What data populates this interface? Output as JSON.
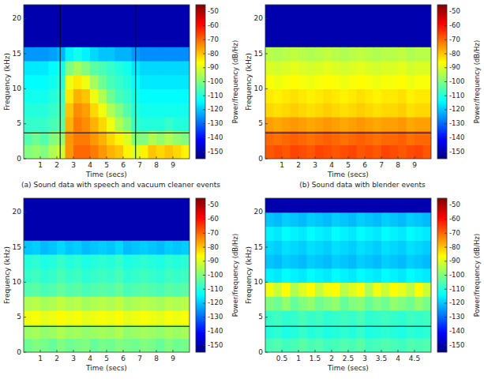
{
  "chart_data": [
    {
      "type": "heatmap",
      "caption": "(a) Sound data with speech and vacuum cleaner events",
      "x_label": "Time (secs)",
      "y_label": "Frequency (kHz)",
      "xlim": [
        0,
        10
      ],
      "ylim": [
        0,
        22
      ],
      "xticks": [
        1,
        2,
        3,
        4,
        5,
        6,
        7,
        8,
        9
      ],
      "yticks": [
        0,
        5,
        10,
        15,
        20
      ],
      "x": [
        0.25,
        0.75,
        1.25,
        1.75,
        2.25,
        2.75,
        3.25,
        3.75,
        4.25,
        4.75,
        5.25,
        5.75,
        6.25,
        6.75,
        7.25,
        7.75,
        8.25,
        8.75,
        9.25,
        9.75
      ],
      "y": [
        1,
        3,
        5,
        7,
        9,
        11,
        13,
        15,
        17,
        19,
        21
      ],
      "z": [
        [
          -100,
          -98,
          -100,
          -95,
          -92,
          -75,
          -70,
          -70,
          -72,
          -75,
          -78,
          -80,
          -85,
          -90,
          -85,
          -80,
          -82,
          -80,
          -82,
          -85
        ],
        [
          -105,
          -102,
          -105,
          -100,
          -98,
          -75,
          -72,
          -72,
          -75,
          -78,
          -82,
          -85,
          -90,
          -100,
          -100,
          -95,
          -98,
          -95,
          -98,
          -100
        ],
        [
          -108,
          -108,
          -108,
          -106,
          -104,
          -78,
          -72,
          -74,
          -78,
          -82,
          -88,
          -95,
          -100,
          -108,
          -110,
          -110,
          -110,
          -108,
          -110,
          -110
        ],
        [
          -110,
          -110,
          -110,
          -108,
          -106,
          -80,
          -74,
          -76,
          -82,
          -88,
          -95,
          -100,
          -105,
          -110,
          -112,
          -112,
          -112,
          -112,
          -112,
          -112
        ],
        [
          -112,
          -112,
          -112,
          -110,
          -108,
          -84,
          -78,
          -80,
          -88,
          -95,
          -102,
          -106,
          -108,
          -112,
          -114,
          -114,
          -114,
          -114,
          -114,
          -114
        ],
        [
          -114,
          -114,
          -114,
          -112,
          -110,
          -88,
          -84,
          -88,
          -96,
          -102,
          -106,
          -108,
          -110,
          -114,
          -116,
          -116,
          -116,
          -116,
          -116,
          -116
        ],
        [
          -116,
          -116,
          -116,
          -114,
          -112,
          -100,
          -96,
          -100,
          -104,
          -106,
          -108,
          -110,
          -112,
          -116,
          -118,
          -118,
          -118,
          -118,
          -118,
          -118
        ],
        [
          -125,
          -125,
          -125,
          -124,
          -122,
          -115,
          -112,
          -115,
          -118,
          -120,
          -120,
          -122,
          -122,
          -125,
          -126,
          -126,
          -126,
          -126,
          -126,
          -126
        ],
        [
          -150,
          -150,
          -150,
          -150,
          -150,
          -150,
          -150,
          -150,
          -150,
          -150,
          -150,
          -150,
          -150,
          -150,
          -150,
          -150,
          -150,
          -150,
          -150,
          -150
        ],
        [
          -150,
          -150,
          -150,
          -150,
          -150,
          -150,
          -150,
          -150,
          -150,
          -150,
          -150,
          -150,
          -150,
          -150,
          -150,
          -150,
          -150,
          -150,
          -150,
          -150
        ],
        [
          -150,
          -150,
          -150,
          -150,
          -150,
          -150,
          -150,
          -150,
          -150,
          -150,
          -150,
          -150,
          -150,
          -150,
          -150,
          -150,
          -150,
          -150,
          -150,
          -150
        ]
      ],
      "hlines": [
        3.7
      ],
      "vlines": [
        2.2,
        6.75
      ],
      "colorbar": {
        "label": "Power/frequency (dB/Hz)",
        "range": [
          -155,
          -45
        ],
        "ticks": [
          -50,
          -60,
          -70,
          -80,
          -90,
          -100,
          -110,
          -120,
          -130,
          -140,
          -150
        ]
      }
    },
    {
      "type": "heatmap",
      "caption": "(b) Sound data with blender events",
      "x_label": "Time (secs)",
      "y_label": "Frequency (kHz)",
      "xlim": [
        0,
        10
      ],
      "ylim": [
        0,
        22
      ],
      "xticks": [
        1,
        2,
        3,
        4,
        5,
        6,
        7,
        8,
        9
      ],
      "yticks": [
        0,
        5,
        10,
        15,
        20
      ],
      "x": [
        0.25,
        0.75,
        1.25,
        1.75,
        2.25,
        2.75,
        3.25,
        3.75,
        4.25,
        4.75,
        5.25,
        5.75,
        6.25,
        6.75,
        7.25,
        7.75,
        8.25,
        8.75,
        9.25,
        9.75
      ],
      "y": [
        1,
        3,
        5,
        7,
        9,
        11,
        13,
        15,
        17,
        19,
        21
      ],
      "z": [
        [
          -68,
          -67,
          -68,
          -66,
          -67,
          -68,
          -66,
          -67,
          -68,
          -67,
          -66,
          -68,
          -67,
          -68,
          -66,
          -67,
          -68,
          -67,
          -66,
          -68
        ],
        [
          -70,
          -71,
          -70,
          -69,
          -70,
          -71,
          -70,
          -69,
          -70,
          -71,
          -70,
          -69,
          -70,
          -71,
          -70,
          -70,
          -69,
          -71,
          -70,
          -70
        ],
        [
          -76,
          -77,
          -76,
          -75,
          -76,
          -77,
          -76,
          -75,
          -76,
          -77,
          -76,
          -75,
          -76,
          -77,
          -76,
          -76,
          -75,
          -77,
          -76,
          -76
        ],
        [
          -82,
          -83,
          -82,
          -81,
          -82,
          -83,
          -82,
          -81,
          -82,
          -83,
          -82,
          -81,
          -82,
          -83,
          -82,
          -82,
          -81,
          -83,
          -82,
          -82
        ],
        [
          -84,
          -85,
          -84,
          -83,
          -84,
          -85,
          -84,
          -83,
          -84,
          -85,
          -84,
          -83,
          -84,
          -85,
          -84,
          -84,
          -83,
          -85,
          -84,
          -84
        ],
        [
          -87,
          -88,
          -87,
          -86,
          -87,
          -88,
          -87,
          -86,
          -87,
          -88,
          -87,
          -86,
          -87,
          -88,
          -87,
          -87,
          -86,
          -88,
          -87,
          -87
        ],
        [
          -90,
          -91,
          -90,
          -89,
          -90,
          -91,
          -90,
          -89,
          -90,
          -91,
          -90,
          -89,
          -90,
          -91,
          -90,
          -90,
          -89,
          -91,
          -90,
          -90
        ],
        [
          -94,
          -95,
          -94,
          -93,
          -94,
          -95,
          -94,
          -93,
          -94,
          -95,
          -94,
          -93,
          -94,
          -95,
          -94,
          -94,
          -93,
          -95,
          -94,
          -94
        ],
        [
          -150,
          -150,
          -150,
          -150,
          -150,
          -150,
          -150,
          -150,
          -150,
          -150,
          -150,
          -150,
          -150,
          -150,
          -150,
          -150,
          -150,
          -150,
          -150,
          -150
        ],
        [
          -150,
          -150,
          -150,
          -150,
          -150,
          -150,
          -150,
          -150,
          -150,
          -150,
          -150,
          -150,
          -150,
          -150,
          -150,
          -150,
          -150,
          -150,
          -150,
          -150
        ],
        [
          -150,
          -150,
          -150,
          -150,
          -150,
          -150,
          -150,
          -150,
          -150,
          -150,
          -150,
          -150,
          -150,
          -150,
          -150,
          -150,
          -150,
          -150,
          -150,
          -150
        ]
      ],
      "hlines": [
        3.7
      ],
      "colorbar": {
        "label": "Power/frequency (dB/Hz)",
        "range": [
          -155,
          -45
        ],
        "ticks": [
          -50,
          -60,
          -70,
          -80,
          -90,
          -100,
          -110,
          -120,
          -130,
          -140,
          -150
        ]
      }
    },
    {
      "type": "heatmap",
      "x_label": "Time (secs)",
      "y_label": "Frequency (kHz)",
      "xlim": [
        0,
        10
      ],
      "ylim": [
        0,
        22
      ],
      "xticks": [
        1,
        2,
        3,
        4,
        5,
        6,
        7,
        8,
        9
      ],
      "yticks": [
        0,
        5,
        10,
        15,
        20
      ],
      "x": [
        0.25,
        0.75,
        1.25,
        1.75,
        2.25,
        2.75,
        3.25,
        3.75,
        4.25,
        4.75,
        5.25,
        5.75,
        6.25,
        6.75,
        7.25,
        7.75,
        8.25,
        8.75,
        9.25,
        9.75
      ],
      "y": [
        1,
        3,
        5,
        7,
        9,
        11,
        13,
        15,
        17,
        19,
        21
      ],
      "z": [
        [
          -102,
          -100,
          -101,
          -103,
          -100,
          -102,
          -101,
          -100,
          -103,
          -101,
          -102,
          -100,
          -101,
          -102,
          -100,
          -101,
          -103,
          -100,
          -102,
          -101
        ],
        [
          -97,
          -96,
          -98,
          -97,
          -95,
          -97,
          -96,
          -98,
          -97,
          -96,
          -97,
          -95,
          -98,
          -97,
          -96,
          -97,
          -98,
          -96,
          -97,
          -96
        ],
        [
          -88,
          -87,
          -89,
          -88,
          -86,
          -88,
          -87,
          -89,
          -88,
          -87,
          -88,
          -86,
          -89,
          -88,
          -87,
          -88,
          -89,
          -87,
          -88,
          -87
        ],
        [
          -95,
          -94,
          -96,
          -95,
          -93,
          -95,
          -94,
          -96,
          -95,
          -94,
          -95,
          -93,
          -96,
          -95,
          -94,
          -95,
          -96,
          -94,
          -95,
          -94
        ],
        [
          -105,
          -104,
          -106,
          -105,
          -103,
          -105,
          -104,
          -106,
          -105,
          -104,
          -105,
          -103,
          -106,
          -105,
          -104,
          -105,
          -106,
          -104,
          -105,
          -104
        ],
        [
          -108,
          -107,
          -109,
          -108,
          -106,
          -108,
          -107,
          -109,
          -108,
          -107,
          -108,
          -106,
          -109,
          -108,
          -107,
          -108,
          -109,
          -107,
          -108,
          -107
        ],
        [
          -110,
          -109,
          -111,
          -110,
          -108,
          -110,
          -109,
          -111,
          -110,
          -109,
          -110,
          -108,
          -111,
          -110,
          -109,
          -110,
          -111,
          -109,
          -110,
          -109
        ],
        [
          -120,
          -119,
          -121,
          -120,
          -118,
          -120,
          -119,
          -121,
          -120,
          -119,
          -120,
          -118,
          -121,
          -120,
          -119,
          -120,
          -121,
          -119,
          -120,
          -119
        ],
        [
          -150,
          -150,
          -150,
          -150,
          -150,
          -150,
          -150,
          -150,
          -150,
          -150,
          -150,
          -150,
          -150,
          -150,
          -150,
          -150,
          -150,
          -150,
          -150,
          -150
        ],
        [
          -150,
          -150,
          -150,
          -150,
          -150,
          -150,
          -150,
          -150,
          -150,
          -150,
          -150,
          -150,
          -150,
          -150,
          -150,
          -150,
          -150,
          -150,
          -150,
          -150
        ],
        [
          -150,
          -150,
          -150,
          -150,
          -150,
          -150,
          -150,
          -150,
          -150,
          -150,
          -150,
          -150,
          -150,
          -150,
          -150,
          -150,
          -150,
          -150,
          -150,
          -150
        ]
      ],
      "hlines": [
        3.7
      ],
      "colorbar": {
        "label": "Power/frequency (dB/Hz)",
        "range": [
          -155,
          -45
        ],
        "ticks": [
          -50,
          -60,
          -70,
          -80,
          -90,
          -100,
          -110,
          -120,
          -130,
          -140,
          -150
        ]
      }
    },
    {
      "type": "heatmap",
      "x_label": "Time (secs)",
      "y_label": "Frequency (kHz)",
      "xlim": [
        0,
        5
      ],
      "ylim": [
        0,
        22
      ],
      "xticks": [
        0.5,
        1,
        1.5,
        2,
        2.5,
        3,
        3.5,
        4,
        4.5
      ],
      "yticks": [
        0,
        5,
        10,
        15,
        20
      ],
      "x": [
        0.125,
        0.375,
        0.625,
        0.875,
        1.125,
        1.375,
        1.625,
        1.875,
        2.125,
        2.375,
        2.625,
        2.875,
        3.125,
        3.375,
        3.625,
        3.875,
        4.125,
        4.375,
        4.625,
        4.875
      ],
      "y": [
        1,
        3,
        5,
        7,
        9,
        11,
        13,
        15,
        17,
        19,
        21
      ],
      "z": [
        [
          -106,
          -105,
          -107,
          -106,
          -104,
          -106,
          -105,
          -107,
          -106,
          -105,
          -106,
          -104,
          -107,
          -106,
          -105,
          -106,
          -107,
          -105,
          -106,
          -105
        ],
        [
          -110,
          -109,
          -111,
          -110,
          -108,
          -110,
          -109,
          -111,
          -110,
          -109,
          -110,
          -108,
          -111,
          -110,
          -109,
          -110,
          -111,
          -109,
          -110,
          -109
        ],
        [
          -108,
          -107,
          -109,
          -108,
          -106,
          -108,
          -107,
          -109,
          -108,
          -107,
          -108,
          -106,
          -109,
          -108,
          -107,
          -108,
          -109,
          -107,
          -108,
          -107
        ],
        [
          -100,
          -102,
          -98,
          -103,
          -100,
          -98,
          -102,
          -100,
          -98,
          -103,
          -100,
          -99,
          -103,
          -100,
          -102,
          -98,
          -100,
          -102,
          -98,
          -101
        ],
        [
          -88,
          -92,
          -86,
          -95,
          -90,
          -86,
          -93,
          -88,
          -86,
          -94,
          -90,
          -87,
          -95,
          -88,
          -92,
          -86,
          -89,
          -93,
          -86,
          -92
        ],
        [
          -115,
          -116,
          -114,
          -115,
          -116,
          -114,
          -115,
          -116,
          -114,
          -115,
          -116,
          -114,
          -115,
          -116,
          -114,
          -115,
          -116,
          -114,
          -115,
          -116
        ],
        [
          -120,
          -121,
          -119,
          -120,
          -121,
          -119,
          -120,
          -121,
          -119,
          -120,
          -121,
          -119,
          -120,
          -121,
          -119,
          -120,
          -121,
          -119,
          -120,
          -121
        ],
        [
          -118,
          -119,
          -117,
          -118,
          -119,
          -117,
          -118,
          -119,
          -117,
          -118,
          -119,
          -117,
          -118,
          -119,
          -117,
          -118,
          -119,
          -117,
          -118,
          -119
        ],
        [
          -115,
          -116,
          -114,
          -115,
          -116,
          -114,
          -115,
          -116,
          -114,
          -115,
          -116,
          -114,
          -115,
          -116,
          -114,
          -115,
          -116,
          -114,
          -115,
          -116
        ],
        [
          -120,
          -121,
          -119,
          -120,
          -121,
          -119,
          -120,
          -121,
          -119,
          -120,
          -121,
          -119,
          -120,
          -121,
          -119,
          -120,
          -121,
          -119,
          -120,
          -121
        ],
        [
          -150,
          -150,
          -150,
          -150,
          -150,
          -150,
          -150,
          -150,
          -150,
          -150,
          -150,
          -150,
          -150,
          -150,
          -150,
          -150,
          -150,
          -150,
          -150,
          -150
        ]
      ],
      "hlines": [
        3.7
      ],
      "colorbar": {
        "label": "Power/frequency (dB/Hz)",
        "range": [
          -155,
          -45
        ],
        "ticks": [
          -50,
          -60,
          -70,
          -80,
          -90,
          -100,
          -110,
          -120,
          -130,
          -140,
          -150
        ]
      }
    }
  ]
}
